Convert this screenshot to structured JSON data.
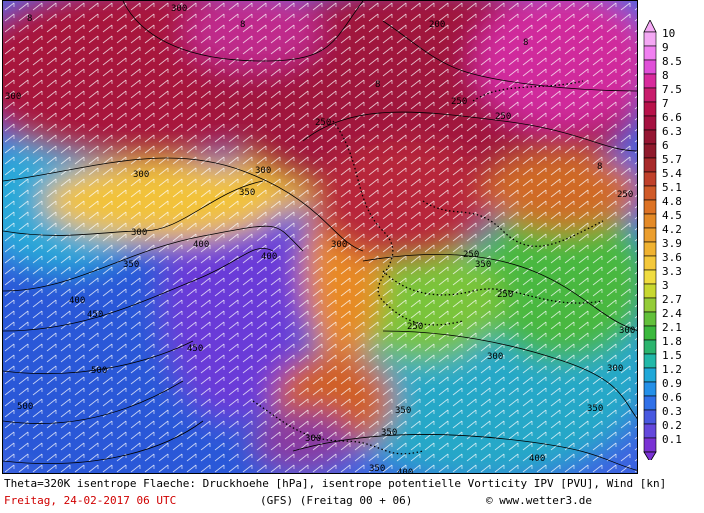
{
  "caption": {
    "line1": "Theta=320K isentrope Flaeche: Druckhoehe [hPa], isentrope potentielle Vorticity IPV [PVU], Wind [kn]",
    "date": "Freitag, 24-02-2017  06 UTC",
    "model": "(GFS)  (Freitag 00 + 06)",
    "credit": "© www.wetter3.de"
  },
  "legend": {
    "labels": [
      "10",
      "9",
      "8.5",
      "8",
      "7.5",
      "7",
      "6.6",
      "6.3",
      "6",
      "5.7",
      "5.4",
      "5.1",
      "4.8",
      "4.5",
      "4.2",
      "3.9",
      "3.6",
      "3.3",
      "3",
      "2.7",
      "2.4",
      "2.1",
      "1.8",
      "1.5",
      "1.2",
      "0.9",
      "0.6",
      "0.3",
      "0.2",
      "0.1"
    ],
    "colors": [
      "#f4a8f4",
      "#f080f0",
      "#e050d8",
      "#d82a9c",
      "#c81d6c",
      "#b8124a",
      "#a51140",
      "#951632",
      "#8f1a2c",
      "#a82a2a",
      "#c0402a",
      "#d05a28",
      "#dd7224",
      "#e48a26",
      "#eb9e2e",
      "#f0b230",
      "#f4c83a",
      "#f0dc40",
      "#c8d830",
      "#94cc38",
      "#62c03a",
      "#3ab83c",
      "#2cb46e",
      "#22b8a8",
      "#20a8d8",
      "#2490e8",
      "#3070e8",
      "#4858e0",
      "#6448dc",
      "#7a32d4"
    ]
  },
  "map": {
    "isobar_labels": [
      "300",
      "200",
      "250",
      "250",
      "250",
      "300",
      "300",
      "300",
      "350",
      "400",
      "400",
      "400",
      "450",
      "450",
      "500",
      "500",
      "300",
      "350",
      "300",
      "250",
      "250",
      "250",
      "300",
      "350",
      "350",
      "300",
      "350",
      "400",
      "350",
      "400",
      "250",
      "300",
      "350",
      "300"
    ],
    "high_pv_marks": [
      "8",
      "8",
      "8",
      "8",
      "8"
    ]
  }
}
